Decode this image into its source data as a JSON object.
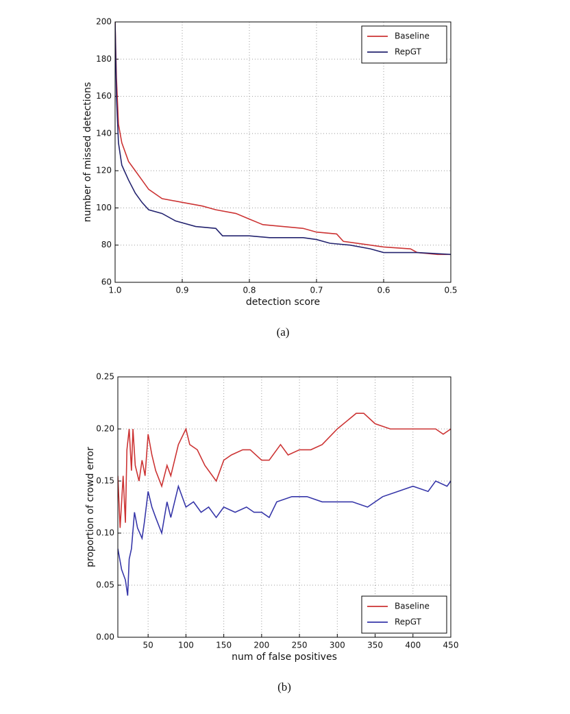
{
  "chart_data": [
    {
      "type": "line",
      "xlabel": "detection score",
      "ylabel": "number of missed detections",
      "caption": "(a)",
      "xlim": [
        1,
        0.5
      ],
      "ylim": [
        60,
        200
      ],
      "xticks": [
        {
          "value": 1,
          "label": "1.0"
        },
        0.9,
        0.8,
        0.7,
        0.6,
        0.5
      ],
      "yticks": [
        60,
        80,
        100,
        120,
        140,
        160,
        180,
        200
      ],
      "grid": true,
      "legend": "upper right",
      "series": [
        {
          "name": "Baseline",
          "color": "#cc3333",
          "x": [
            1.0,
            0.998,
            0.995,
            0.99,
            0.98,
            0.97,
            0.96,
            0.95,
            0.93,
            0.9,
            0.87,
            0.85,
            0.82,
            0.8,
            0.78,
            0.75,
            0.72,
            0.7,
            0.67,
            0.66,
            0.62,
            0.6,
            0.56,
            0.55,
            0.52,
            0.5
          ],
          "values": [
            200,
            170,
            145,
            135,
            125,
            120,
            115,
            110,
            105,
            103,
            101,
            99,
            97,
            94,
            91,
            90,
            89,
            87,
            86,
            82,
            80,
            79,
            78,
            76,
            75,
            75
          ]
        },
        {
          "name": "RepGT",
          "color": "#22226e",
          "x": [
            1.0,
            0.998,
            0.995,
            0.99,
            0.98,
            0.97,
            0.96,
            0.95,
            0.93,
            0.91,
            0.88,
            0.85,
            0.84,
            0.8,
            0.77,
            0.72,
            0.7,
            0.68,
            0.65,
            0.62,
            0.6,
            0.55,
            0.5
          ],
          "values": [
            200,
            160,
            135,
            123,
            115,
            108,
            103,
            99,
            97,
            93,
            90,
            89,
            85,
            85,
            84,
            84,
            83,
            81,
            80,
            78,
            76,
            76,
            75
          ]
        }
      ]
    },
    {
      "type": "line",
      "xlabel": "num of false positives",
      "ylabel": "proportion of crowd error",
      "caption": "(b)",
      "xlim": [
        10,
        450
      ],
      "ylim": [
        0,
        0.25
      ],
      "xticks": [
        50,
        100,
        150,
        200,
        250,
        300,
        350,
        400,
        450
      ],
      "yticks": [
        {
          "value": 0,
          "label": "0.00"
        },
        0.05,
        {
          "value": 0.1,
          "label": "0.10"
        },
        0.15,
        {
          "value": 0.2,
          "label": "0.20"
        },
        0.25
      ],
      "grid": true,
      "legend": "lower right",
      "series": [
        {
          "name": "Baseline",
          "color": "#cc3333",
          "x": [
            10,
            13,
            17,
            20,
            22,
            25,
            28,
            30,
            33,
            38,
            42,
            46,
            50,
            55,
            60,
            68,
            75,
            80,
            90,
            100,
            105,
            115,
            125,
            140,
            150,
            160,
            175,
            185,
            200,
            210,
            225,
            235,
            250,
            265,
            280,
            300,
            325,
            335,
            350,
            370,
            390,
            410,
            430,
            440,
            450
          ],
          "values": [
            0.155,
            0.105,
            0.155,
            0.11,
            0.18,
            0.2,
            0.16,
            0.2,
            0.165,
            0.15,
            0.17,
            0.155,
            0.195,
            0.175,
            0.16,
            0.145,
            0.165,
            0.155,
            0.185,
            0.2,
            0.185,
            0.18,
            0.165,
            0.15,
            0.17,
            0.175,
            0.18,
            0.18,
            0.17,
            0.17,
            0.185,
            0.175,
            0.18,
            0.18,
            0.185,
            0.2,
            0.215,
            0.215,
            0.205,
            0.2,
            0.2,
            0.2,
            0.2,
            0.195,
            0.2
          ]
        },
        {
          "name": "RepGT",
          "color": "#3535a8",
          "x": [
            10,
            15,
            20,
            23,
            25,
            28,
            32,
            36,
            42,
            45,
            50,
            55,
            60,
            68,
            75,
            80,
            90,
            100,
            110,
            120,
            130,
            140,
            150,
            165,
            180,
            190,
            200,
            210,
            220,
            240,
            260,
            280,
            300,
            320,
            340,
            360,
            380,
            400,
            420,
            430,
            445,
            450
          ],
          "values": [
            0.085,
            0.065,
            0.055,
            0.04,
            0.075,
            0.085,
            0.12,
            0.105,
            0.095,
            0.11,
            0.14,
            0.125,
            0.115,
            0.1,
            0.13,
            0.115,
            0.145,
            0.125,
            0.13,
            0.12,
            0.125,
            0.115,
            0.125,
            0.12,
            0.125,
            0.12,
            0.12,
            0.115,
            0.13,
            0.135,
            0.135,
            0.13,
            0.13,
            0.13,
            0.125,
            0.135,
            0.14,
            0.145,
            0.14,
            0.15,
            0.145,
            0.15
          ]
        }
      ]
    }
  ]
}
